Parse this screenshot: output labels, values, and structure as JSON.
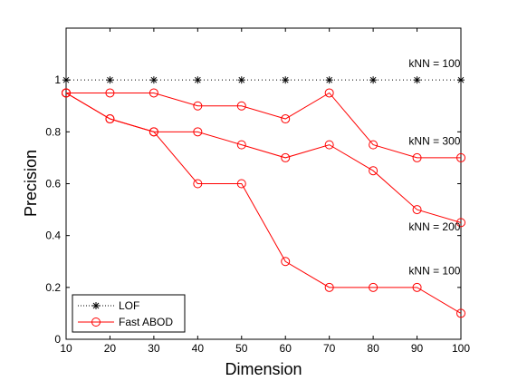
{
  "chart_data": {
    "type": "line",
    "title": "",
    "xlabel": "Dimension",
    "ylabel": "Precision",
    "xlim": [
      10,
      100
    ],
    "ylim": [
      0,
      1.2
    ],
    "x_ticks": [
      10,
      20,
      30,
      40,
      50,
      60,
      70,
      80,
      90,
      100
    ],
    "x_tick_labels": [
      "10",
      "20",
      "30",
      "40",
      "50",
      "60",
      "70",
      "80",
      "90",
      "100"
    ],
    "y_ticks": [
      0,
      0.2,
      0.4,
      0.6,
      0.8,
      1
    ],
    "y_tick_labels": [
      "0",
      "0.2",
      "0.4",
      "0.6",
      "0.8",
      "1"
    ],
    "grid": false,
    "legend_position": "bottom-left",
    "legend": [
      {
        "label": "LOF",
        "color": "#000000",
        "marker": "star",
        "line": "dotted"
      },
      {
        "label": "Fast ABOD",
        "color": "#ff0000",
        "marker": "circle",
        "line": "solid"
      }
    ],
    "series": [
      {
        "legend": "LOF",
        "color": "#000000",
        "marker": "star",
        "line": "dotted",
        "x": [
          10,
          20,
          30,
          40,
          50,
          60,
          70,
          80,
          90,
          100
        ],
        "y": [
          1.0,
          1.0,
          1.0,
          1.0,
          1.0,
          1.0,
          1.0,
          1.0,
          1.0,
          1.0
        ]
      },
      {
        "legend": "Fast ABOD",
        "annotation": "kNN = 300",
        "color": "#ff0000",
        "marker": "circle",
        "line": "solid",
        "x": [
          10,
          20,
          30,
          40,
          50,
          60,
          70,
          80,
          90,
          100
        ],
        "y": [
          0.95,
          0.95,
          0.95,
          0.9,
          0.9,
          0.85,
          0.95,
          0.75,
          0.7,
          0.7
        ]
      },
      {
        "legend": "Fast ABOD",
        "annotation": "kNN = 200",
        "color": "#ff0000",
        "marker": "circle",
        "line": "solid",
        "x": [
          10,
          20,
          30,
          40,
          50,
          60,
          70,
          80,
          90,
          100
        ],
        "y": [
          0.95,
          0.85,
          0.8,
          0.8,
          0.75,
          0.7,
          0.75,
          0.65,
          0.5,
          0.45
        ]
      },
      {
        "legend": "Fast ABOD",
        "annotation": "kNN = 100",
        "color": "#ff0000",
        "marker": "circle",
        "line": "solid",
        "x": [
          10,
          20,
          30,
          40,
          50,
          60,
          70,
          80,
          90,
          100
        ],
        "y": [
          0.95,
          0.85,
          0.8,
          0.6,
          0.6,
          0.3,
          0.2,
          0.2,
          0.2,
          0.1
        ]
      }
    ],
    "annotations": [
      {
        "text": "kNN = 100",
        "x": 94,
        "y": 1.05
      },
      {
        "text": "kNN = 300",
        "x": 94,
        "y": 0.75
      },
      {
        "text": "kNN = 200",
        "x": 94,
        "y": 0.42
      },
      {
        "text": "kNN = 100",
        "x": 94,
        "y": 0.25
      }
    ]
  }
}
